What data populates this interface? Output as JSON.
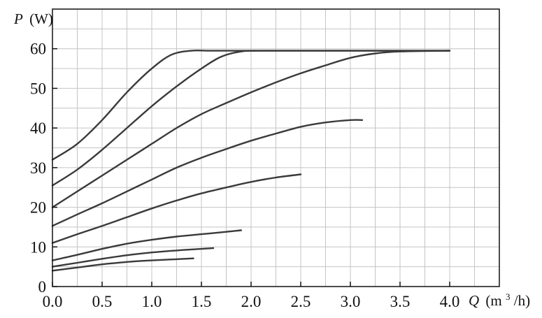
{
  "chart_data": {
    "type": "line",
    "xlabel_var": "Q",
    "xlabel_unit_pre": "(m",
    "xlabel_unit_sup": "3",
    "xlabel_unit_post": "/h)",
    "ylabel_var": "P",
    "ylabel_unit": "(W)",
    "xlim": [
      0,
      4.5
    ],
    "ylim": [
      0,
      70
    ],
    "x_ticks": [
      0,
      0.5,
      1,
      1.5,
      2,
      2.5,
      3,
      3.5,
      4
    ],
    "x_tick_labels": [
      "0.0",
      "0.5",
      "1.0",
      "1.5",
      "2.0",
      "2.5",
      "3.0",
      "3.5",
      "4.0"
    ],
    "y_ticks": [
      0,
      10,
      20,
      30,
      40,
      50,
      60
    ],
    "y_tick_labels": [
      "0",
      "10",
      "20",
      "30",
      "40",
      "50",
      "60"
    ],
    "grid_x": [
      0,
      0.25,
      0.5,
      0.75,
      1,
      1.25,
      1.5,
      1.75,
      2,
      2.25,
      2.5,
      2.75,
      3,
      3.25,
      3.5,
      3.75,
      4,
      4.25,
      4.5
    ],
    "grid_y": [
      0,
      5,
      10,
      15,
      20,
      25,
      30,
      35,
      40,
      45,
      50,
      55,
      60,
      65,
      70
    ],
    "grid": true,
    "colors": {
      "line": "#3a3a3a",
      "grid": "#c4c4c4",
      "frame": "#111111"
    },
    "series": [
      {
        "points": [
          [
            0,
            32
          ],
          [
            0.25,
            36
          ],
          [
            0.5,
            42
          ],
          [
            0.75,
            49
          ],
          [
            1.0,
            55
          ],
          [
            1.2,
            58.5
          ],
          [
            1.4,
            59.5
          ],
          [
            1.6,
            59.5
          ],
          [
            2.0,
            59.5
          ],
          [
            3.0,
            59.5
          ],
          [
            4.0,
            59.5
          ]
        ]
      },
      {
        "points": [
          [
            0,
            25.5
          ],
          [
            0.25,
            29.5
          ],
          [
            0.5,
            34.5
          ],
          [
            0.75,
            40
          ],
          [
            1.0,
            45.5
          ],
          [
            1.25,
            50.5
          ],
          [
            1.5,
            55
          ],
          [
            1.7,
            58
          ],
          [
            1.9,
            59.3
          ],
          [
            2.1,
            59.5
          ],
          [
            3.0,
            59.5
          ],
          [
            4.0,
            59.5
          ]
        ]
      },
      {
        "points": [
          [
            0,
            20
          ],
          [
            0.25,
            24
          ],
          [
            0.5,
            28
          ],
          [
            0.75,
            32
          ],
          [
            1.0,
            36
          ],
          [
            1.25,
            40
          ],
          [
            1.5,
            43.5
          ],
          [
            1.75,
            46.3
          ],
          [
            2.0,
            49
          ],
          [
            2.25,
            51.5
          ],
          [
            2.5,
            53.8
          ],
          [
            2.75,
            55.8
          ],
          [
            3.0,
            57.7
          ],
          [
            3.25,
            58.8
          ],
          [
            3.5,
            59.3
          ],
          [
            4.0,
            59.5
          ]
        ]
      },
      {
        "points": [
          [
            0,
            15.3
          ],
          [
            0.25,
            18.2
          ],
          [
            0.5,
            21
          ],
          [
            0.75,
            24
          ],
          [
            1.0,
            27
          ],
          [
            1.25,
            30
          ],
          [
            1.5,
            32.5
          ],
          [
            1.75,
            34.7
          ],
          [
            2.0,
            36.8
          ],
          [
            2.25,
            38.6
          ],
          [
            2.5,
            40.3
          ],
          [
            2.75,
            41.4
          ],
          [
            3.0,
            42
          ],
          [
            3.12,
            42
          ]
        ]
      },
      {
        "points": [
          [
            0,
            11
          ],
          [
            0.25,
            13.2
          ],
          [
            0.5,
            15.3
          ],
          [
            0.75,
            17.5
          ],
          [
            1.0,
            19.7
          ],
          [
            1.25,
            21.7
          ],
          [
            1.5,
            23.5
          ],
          [
            1.75,
            25
          ],
          [
            2.0,
            26.4
          ],
          [
            2.25,
            27.5
          ],
          [
            2.5,
            28.3
          ]
        ]
      },
      {
        "points": [
          [
            0,
            6.6
          ],
          [
            0.25,
            8
          ],
          [
            0.5,
            9.5
          ],
          [
            0.75,
            10.8
          ],
          [
            1.0,
            11.8
          ],
          [
            1.25,
            12.6
          ],
          [
            1.5,
            13.2
          ],
          [
            1.75,
            13.8
          ],
          [
            1.9,
            14.2
          ]
        ]
      },
      {
        "points": [
          [
            0,
            5
          ],
          [
            0.25,
            6
          ],
          [
            0.5,
            7
          ],
          [
            0.75,
            7.9
          ],
          [
            1.0,
            8.6
          ],
          [
            1.25,
            9.1
          ],
          [
            1.5,
            9.5
          ],
          [
            1.62,
            9.7
          ]
        ]
      },
      {
        "points": [
          [
            0,
            4
          ],
          [
            0.25,
            4.8
          ],
          [
            0.5,
            5.6
          ],
          [
            0.75,
            6.2
          ],
          [
            1.0,
            6.6
          ],
          [
            1.25,
            6.9
          ],
          [
            1.42,
            7.1
          ]
        ]
      }
    ]
  }
}
